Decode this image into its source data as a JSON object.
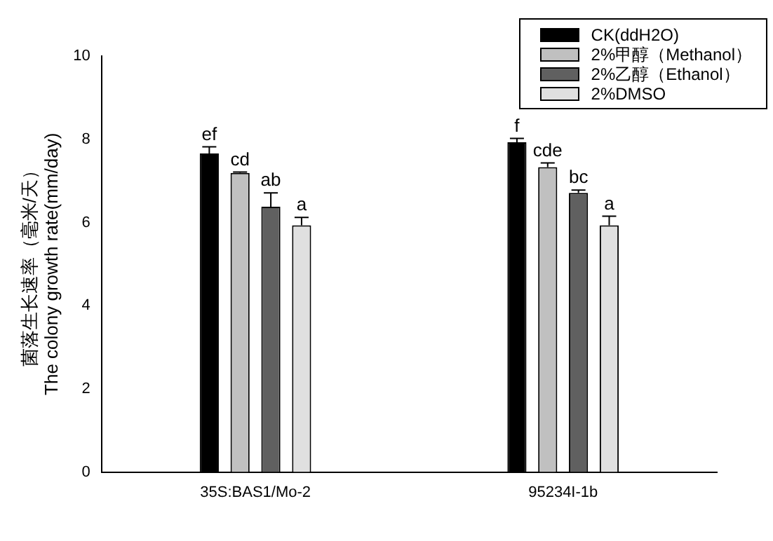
{
  "chart_data": {
    "type": "bar",
    "ylabel": "菌落生长速率（毫米/天）\nThe colony growth rate(mm/day)",
    "categories": [
      "35S:BAS1/Mo-2",
      "95234I-1b"
    ],
    "series": [
      {
        "name": "CK(ddH2O)",
        "color": "#000000",
        "values": [
          7.66,
          7.93
        ],
        "errors": [
          0.16,
          0.09
        ],
        "value_labels": [
          "ef",
          "f"
        ]
      },
      {
        "name": "2%甲醇（Methanol）",
        "color": "#c0c0c0",
        "values": [
          7.19,
          7.33
        ],
        "errors": [
          0.02,
          0.1
        ],
        "value_labels": [
          "cd",
          "cde"
        ]
      },
      {
        "name": "2%乙醇（Ethanol）",
        "color": "#606060",
        "values": [
          6.38,
          6.71
        ],
        "errors": [
          0.33,
          0.07
        ],
        "value_labels": [
          "ab",
          "bc"
        ]
      },
      {
        "name": "2%DMSO",
        "color": "#e0e0e0",
        "values": [
          5.93,
          5.93
        ],
        "errors": [
          0.19,
          0.22
        ],
        "value_labels": [
          "a",
          "a"
        ]
      }
    ],
    "ylim": [
      0,
      10
    ],
    "yticks": [
      0,
      2,
      4,
      6,
      8,
      10
    ],
    "grid": false,
    "legend": "top right"
  }
}
